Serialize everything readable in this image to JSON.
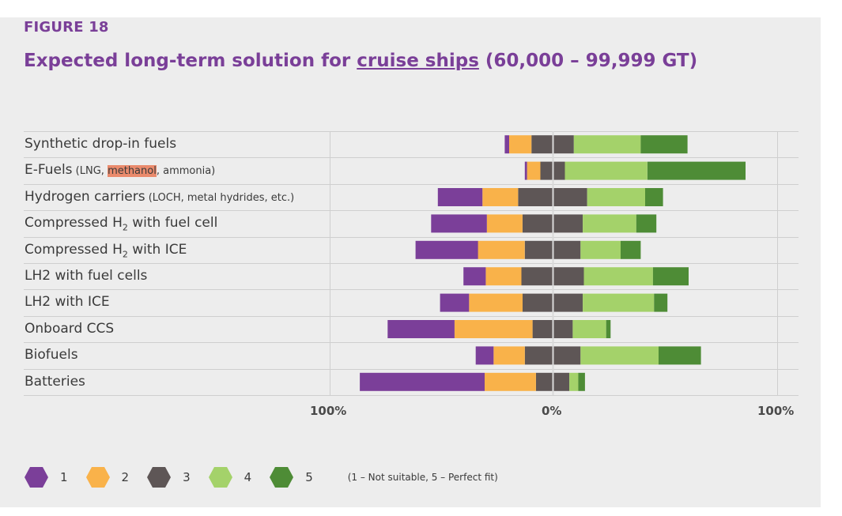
{
  "figure_label": "FIGURE 18",
  "title": {
    "prefix": "Expected long-term solution for ",
    "link": "cruise ships",
    "suffix": " (60,000 – 99,999 GT)"
  },
  "rows": [
    {
      "main": "Synthetic drop-in fuels",
      "note": ""
    },
    {
      "main": "E-Fuels",
      "note_pre": " (LNG, ",
      "note_hl": "methanol",
      "note_post": ", ammonia)"
    },
    {
      "main": "Hydrogen carriers",
      "note": " (LOCH, metal hydrides, etc.)"
    },
    {
      "main_pre": "Compressed H",
      "sub": "2",
      "main_post": " with fuel cell"
    },
    {
      "main_pre": "Compressed H",
      "sub": "2",
      "main_post": " with ICE"
    },
    {
      "main": "LH2 with fuel cells"
    },
    {
      "main": "LH2 with ICE"
    },
    {
      "main": "Onboard CCS"
    },
    {
      "main": "Biofuels"
    },
    {
      "main": "Batteries"
    }
  ],
  "ticks": {
    "left": "100%",
    "center": "0%",
    "right": "100%"
  },
  "legend": {
    "items": [
      "1",
      "2",
      "3",
      "4",
      "5"
    ],
    "note": "(1 – Not suitable, 5 – Perfect fit)"
  },
  "colors": {
    "1": "#7b3f99",
    "2": "#f9b24a",
    "3": "#5e5656",
    "4": "#a4d26a",
    "5": "#4e8c36",
    "title": "#7a3f98",
    "grid": "#cfcfcf"
  },
  "chart_data": {
    "type": "bar",
    "orientation": "horizontal-diverging",
    "categories": [
      "Synthetic drop-in fuels",
      "E-Fuels (LNG, methanol, ammonia)",
      "Hydrogen carriers (LOCH, metal hydrides, etc.)",
      "Compressed H2 with fuel cell",
      "Compressed H2 with ICE",
      "LH2 with fuel cells",
      "LH2 with ICE",
      "Onboard CCS",
      "Biofuels",
      "Batteries"
    ],
    "xlim": [
      -100,
      100
    ],
    "xticks": [
      "100%",
      "0%",
      "100%"
    ],
    "series": [
      {
        "name": "1",
        "values": [
          2,
          1,
          20,
          25,
          28,
          10,
          13,
          30,
          8,
          56
        ]
      },
      {
        "name": "2",
        "values": [
          10,
          6,
          16,
          16,
          21,
          16,
          24,
          35,
          14,
          23
        ]
      },
      {
        "name": "3",
        "values": [
          19,
          11,
          31,
          27,
          25,
          28,
          27,
          18,
          25,
          15
        ]
      },
      {
        "name": "4",
        "values": [
          30,
          37,
          26,
          24,
          18,
          31,
          32,
          15,
          35,
          4
        ]
      },
      {
        "name": "5",
        "values": [
          21,
          44,
          8,
          9,
          9,
          16,
          6,
          2,
          19,
          3
        ]
      }
    ]
  }
}
